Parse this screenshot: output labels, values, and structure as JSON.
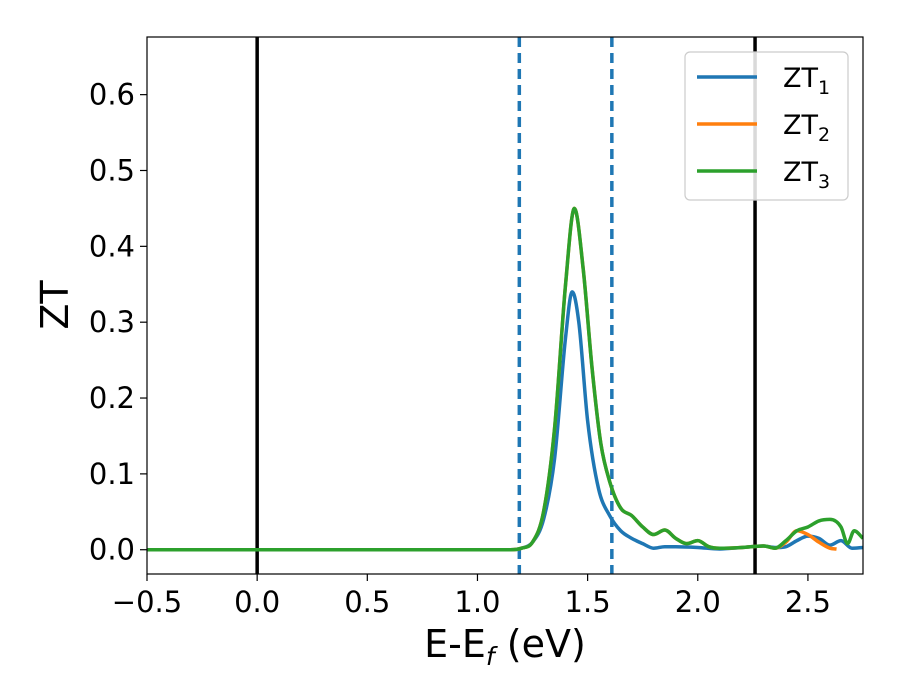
{
  "chart_data": {
    "type": "line",
    "title": "",
    "xlabel": {
      "main": "E-E",
      "sub": "f",
      "suffix": " (eV)"
    },
    "ylabel": "ZT",
    "xlim": [
      -0.5,
      2.75
    ],
    "ylim": [
      -0.032,
      0.676
    ],
    "xticks": [
      -0.5,
      0.0,
      0.5,
      1.0,
      1.5,
      2.0,
      2.5
    ],
    "xtick_labels": [
      "−0.5",
      "0.0",
      "0.5",
      "1.0",
      "1.5",
      "2.0",
      "2.5"
    ],
    "yticks": [
      0.0,
      0.1,
      0.2,
      0.3,
      0.4,
      0.5,
      0.6
    ],
    "ytick_labels": [
      "0.0",
      "0.1",
      "0.2",
      "0.3",
      "0.4",
      "0.5",
      "0.6"
    ],
    "grid": false,
    "legend_position": "top-right",
    "vlines": [
      {
        "x": 0.0,
        "style": "solid",
        "color": "#000000"
      },
      {
        "x": 2.26,
        "style": "solid",
        "color": "#000000"
      },
      {
        "x": 1.19,
        "style": "dashed",
        "color": "#1f77b4"
      },
      {
        "x": 1.61,
        "style": "dashed",
        "color": "#1f77b4"
      }
    ],
    "series": [
      {
        "name": "ZT",
        "sub": "1",
        "color": "#1f77b4",
        "x": [
          -0.5,
          1.15,
          1.2,
          1.25,
          1.3,
          1.35,
          1.4,
          1.43,
          1.46,
          1.5,
          1.55,
          1.6,
          1.65,
          1.7,
          1.75,
          1.8,
          1.85,
          1.9,
          2.0,
          2.1,
          2.2,
          2.3,
          2.35,
          2.4,
          2.45,
          2.5,
          2.55,
          2.6,
          2.65,
          2.7,
          2.75
        ],
        "y": [
          0.0,
          0.0,
          0.002,
          0.01,
          0.04,
          0.12,
          0.28,
          0.34,
          0.3,
          0.17,
          0.08,
          0.045,
          0.025,
          0.015,
          0.008,
          0.002,
          0.004,
          0.004,
          0.003,
          0.001,
          0.003,
          0.005,
          0.003,
          0.004,
          0.012,
          0.018,
          0.015,
          0.006,
          0.012,
          0.002,
          0.003
        ]
      },
      {
        "name": "ZT",
        "sub": "2",
        "color": "#ff7f0e",
        "x": [
          -0.5,
          1.15,
          1.2,
          1.25,
          1.3,
          1.35,
          1.4,
          1.44,
          1.48,
          1.52,
          1.56,
          1.6,
          1.65,
          1.7,
          1.75,
          1.8,
          1.85,
          1.9,
          1.95,
          2.0,
          2.05,
          2.1,
          2.2,
          2.3,
          2.35,
          2.4,
          2.45,
          2.5,
          2.55,
          2.6,
          2.63
        ],
        "y": [
          0.0,
          0.0,
          0.002,
          0.01,
          0.05,
          0.16,
          0.35,
          0.45,
          0.37,
          0.24,
          0.14,
          0.09,
          0.055,
          0.045,
          0.03,
          0.02,
          0.026,
          0.015,
          0.008,
          0.012,
          0.004,
          0.002,
          0.003,
          0.005,
          0.002,
          0.01,
          0.025,
          0.02,
          0.01,
          0.002,
          0.001
        ]
      },
      {
        "name": "ZT",
        "sub": "3",
        "color": "#2ca02c",
        "x": [
          -0.5,
          1.15,
          1.2,
          1.25,
          1.3,
          1.35,
          1.4,
          1.44,
          1.48,
          1.52,
          1.56,
          1.6,
          1.65,
          1.7,
          1.75,
          1.8,
          1.85,
          1.9,
          1.95,
          2.0,
          2.05,
          2.1,
          2.2,
          2.3,
          2.35,
          2.4,
          2.45,
          2.5,
          2.55,
          2.6,
          2.65,
          2.68,
          2.71,
          2.75
        ],
        "y": [
          0.0,
          0.0,
          0.002,
          0.01,
          0.05,
          0.16,
          0.35,
          0.45,
          0.37,
          0.24,
          0.14,
          0.09,
          0.055,
          0.045,
          0.03,
          0.02,
          0.026,
          0.015,
          0.008,
          0.012,
          0.004,
          0.002,
          0.003,
          0.005,
          0.002,
          0.012,
          0.025,
          0.03,
          0.038,
          0.04,
          0.03,
          0.008,
          0.025,
          0.015
        ]
      }
    ]
  }
}
